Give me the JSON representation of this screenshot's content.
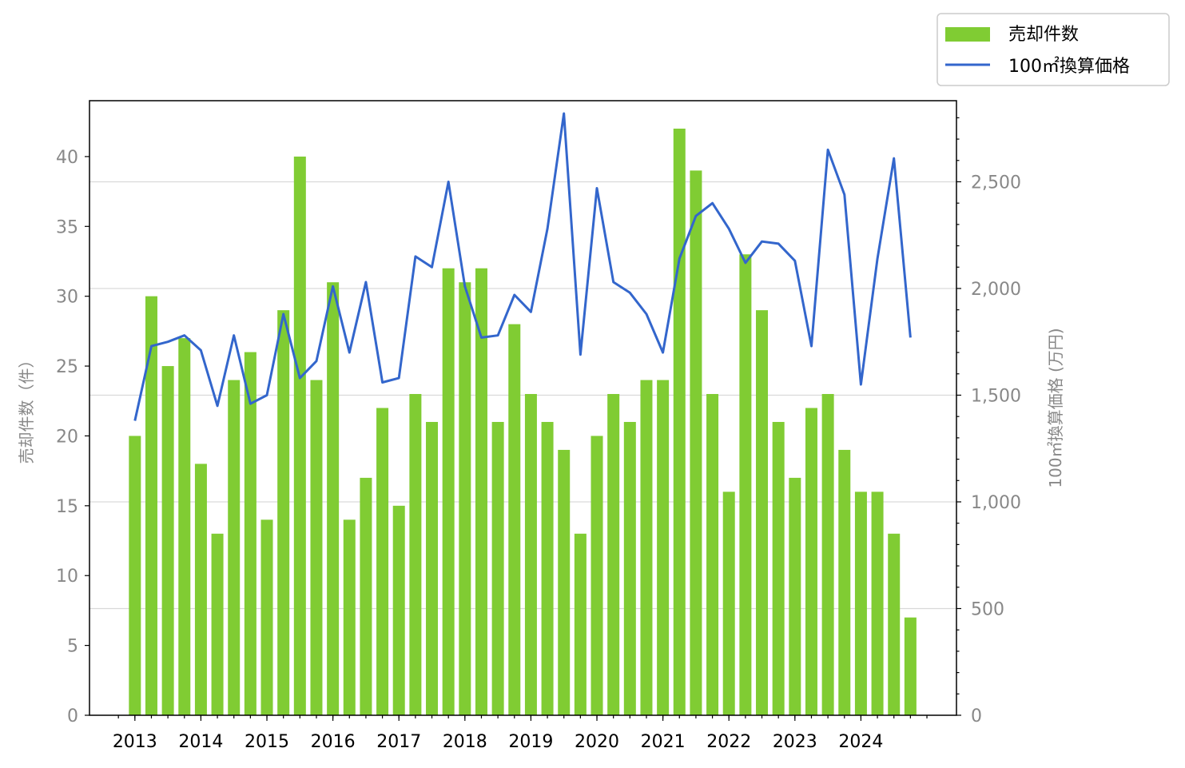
{
  "chart_data": {
    "type": "bar",
    "title": "",
    "x": [
      "2013 Q1",
      "2013 Q2",
      "2013 Q3",
      "2013 Q4",
      "2014 Q1",
      "2014 Q2",
      "2014 Q3",
      "2014 Q4",
      "2015 Q1",
      "2015 Q2",
      "2015 Q3",
      "2015 Q4",
      "2016 Q1",
      "2016 Q2",
      "2016 Q3",
      "2016 Q4",
      "2017 Q1",
      "2017 Q2",
      "2017 Q3",
      "2017 Q4",
      "2018 Q1",
      "2018 Q2",
      "2018 Q3",
      "2018 Q4",
      "2019 Q1",
      "2019 Q2",
      "2019 Q3",
      "2019 Q4",
      "2020 Q1",
      "2020 Q2",
      "2020 Q3",
      "2020 Q4",
      "2021 Q1",
      "2021 Q2",
      "2021 Q3",
      "2021 Q4",
      "2022 Q1",
      "2022 Q2",
      "2022 Q3",
      "2022 Q4",
      "2023 Q1",
      "2023 Q2",
      "2023 Q3",
      "2023 Q4",
      "2024 Q1",
      "2024 Q2",
      "2024 Q3",
      "2024 Q4"
    ],
    "xtick_labels": [
      "2013",
      "2014",
      "2015",
      "2016",
      "2017",
      "2018",
      "2019",
      "2020",
      "2021",
      "2022",
      "2023",
      "2024"
    ],
    "series": [
      {
        "name": "売却件数",
        "type": "bar",
        "axis": "left",
        "color": "#80cc33",
        "values": [
          20,
          30,
          25,
          27,
          18,
          13,
          24,
          26,
          14,
          29,
          40,
          24,
          31,
          14,
          17,
          22,
          15,
          23,
          21,
          32,
          31,
          32,
          21,
          28,
          23,
          21,
          19,
          13,
          20,
          23,
          21,
          24,
          24,
          42,
          39,
          23,
          16,
          33,
          29,
          21,
          17,
          22,
          23,
          19,
          16,
          16,
          13,
          7
        ]
      },
      {
        "name": "100㎡換算価格",
        "type": "line",
        "axis": "right",
        "color": "#3366cc",
        "values": [
          1380,
          1730,
          1750,
          1780,
          1710,
          1450,
          1780,
          1460,
          1500,
          1880,
          1580,
          1660,
          2010,
          1700,
          2030,
          1560,
          1580,
          2150,
          2100,
          2500,
          2010,
          1770,
          1780,
          1970,
          1890,
          2280,
          2820,
          1690,
          2470,
          2030,
          1980,
          1880,
          1700,
          2140,
          2340,
          2400,
          2280,
          2120,
          2220,
          2210,
          2130,
          1730,
          2650,
          2440,
          1550,
          2140,
          2610,
          1770
        ]
      }
    ],
    "ylabel": "売却件数（件）",
    "ylabel_right": "100㎡換算価格 (万円)",
    "ylim": [
      0,
      44
    ],
    "ylim_right": [
      0,
      2880
    ],
    "yticks": [
      0,
      5,
      10,
      15,
      20,
      25,
      30,
      35,
      40
    ],
    "yticks_right": [
      0,
      500,
      1000,
      1500,
      2000,
      2500
    ],
    "ytick_labels_right": [
      "0",
      "500",
      "1,000",
      "1,500",
      "2,000",
      "2,500"
    ],
    "grid": "horizontal at right-axis ticks",
    "legend": "top-right"
  }
}
